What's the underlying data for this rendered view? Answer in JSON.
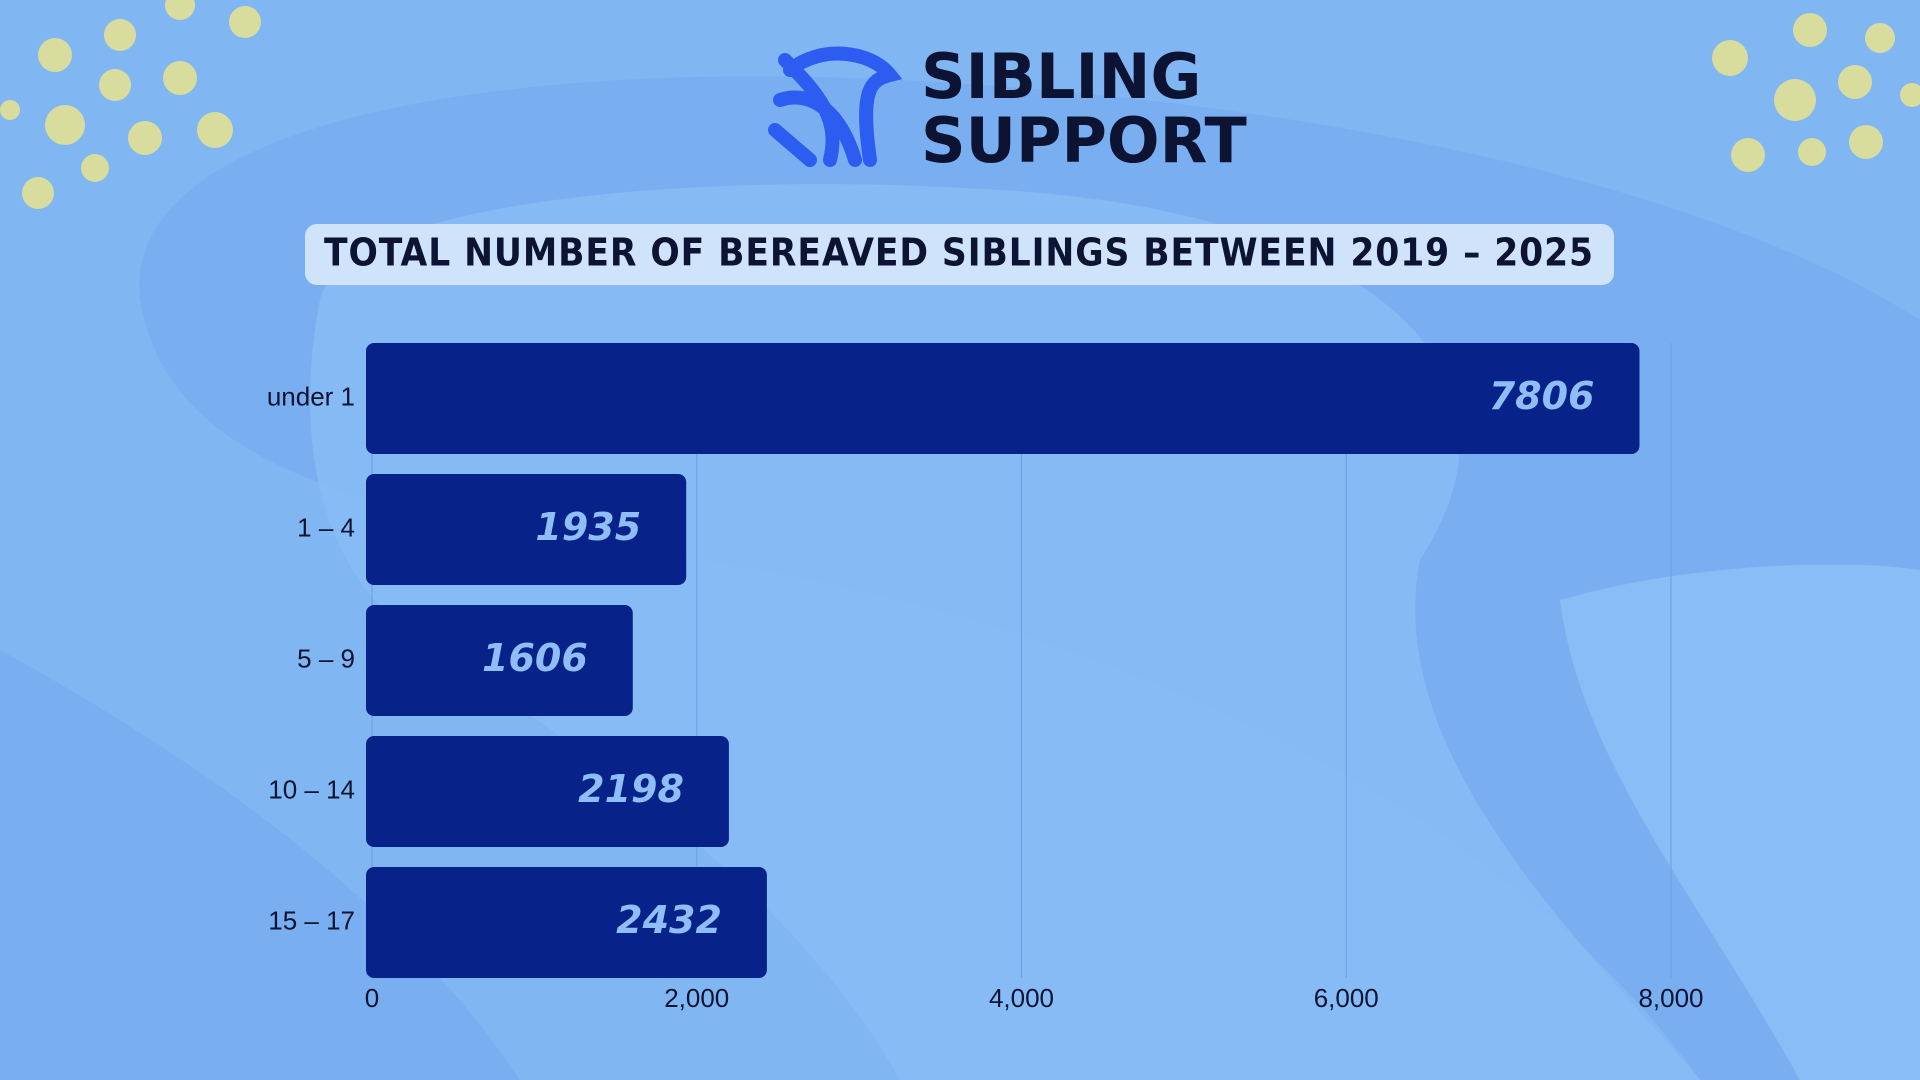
{
  "brand": {
    "line1": "SIBLING",
    "line2": "SUPPORT"
  },
  "chart_data": {
    "type": "bar",
    "orientation": "horizontal",
    "title": "TOTAL NUMBER OF BEREAVED SIBLINGS BETWEEN 2019 – 2025",
    "categories": [
      "under 1",
      "1 – 4",
      "5 – 9",
      "10 – 14",
      "15 – 17"
    ],
    "values": [
      7806,
      1935,
      1606,
      2198,
      2432
    ],
    "color": "#07238a",
    "xlim": [
      0,
      8000
    ],
    "xticks": [
      0,
      {
        "value": 2000,
        "label": "2,000"
      },
      {
        "value": 4000,
        "label": "4,000"
      },
      {
        "value": 6000,
        "label": "6,000"
      },
      {
        "value": 8000,
        "label": "8,000"
      }
    ],
    "grid": true
  }
}
